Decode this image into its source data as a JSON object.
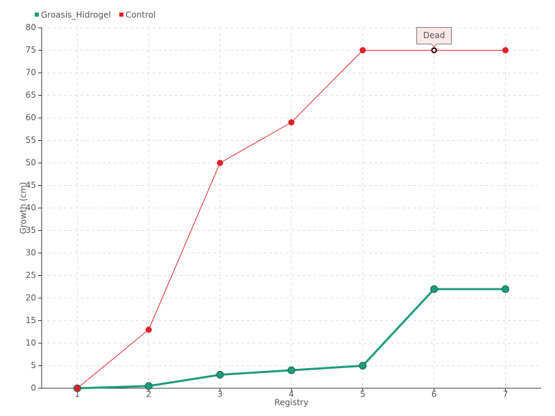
{
  "chart_data": {
    "type": "line",
    "x": [
      1,
      2,
      3,
      4,
      5,
      6,
      7
    ],
    "xlim": [
      0.5,
      7.5
    ],
    "xticks": [
      1,
      2,
      3,
      4,
      5,
      6,
      7
    ],
    "ylim": [
      0,
      80
    ],
    "yticks": [
      0,
      5,
      10,
      15,
      20,
      25,
      30,
      35,
      40,
      45,
      50,
      55,
      60,
      65,
      70,
      75,
      80
    ],
    "xlabel": "Registry",
    "ylabel": "Growth (cm)",
    "grid": true,
    "legend": "top-left",
    "series": [
      {
        "name": "Groasis_Hidrogel",
        "color": "#1f9b79",
        "values": [
          0,
          0.5,
          3,
          4,
          5,
          22,
          22
        ]
      },
      {
        "name": "Control",
        "color": "#e0202b",
        "values": [
          0,
          13,
          50,
          59,
          75,
          75,
          75
        ]
      }
    ],
    "annotations": [
      {
        "text": "Dead",
        "x": 6,
        "y": 75
      }
    ]
  }
}
